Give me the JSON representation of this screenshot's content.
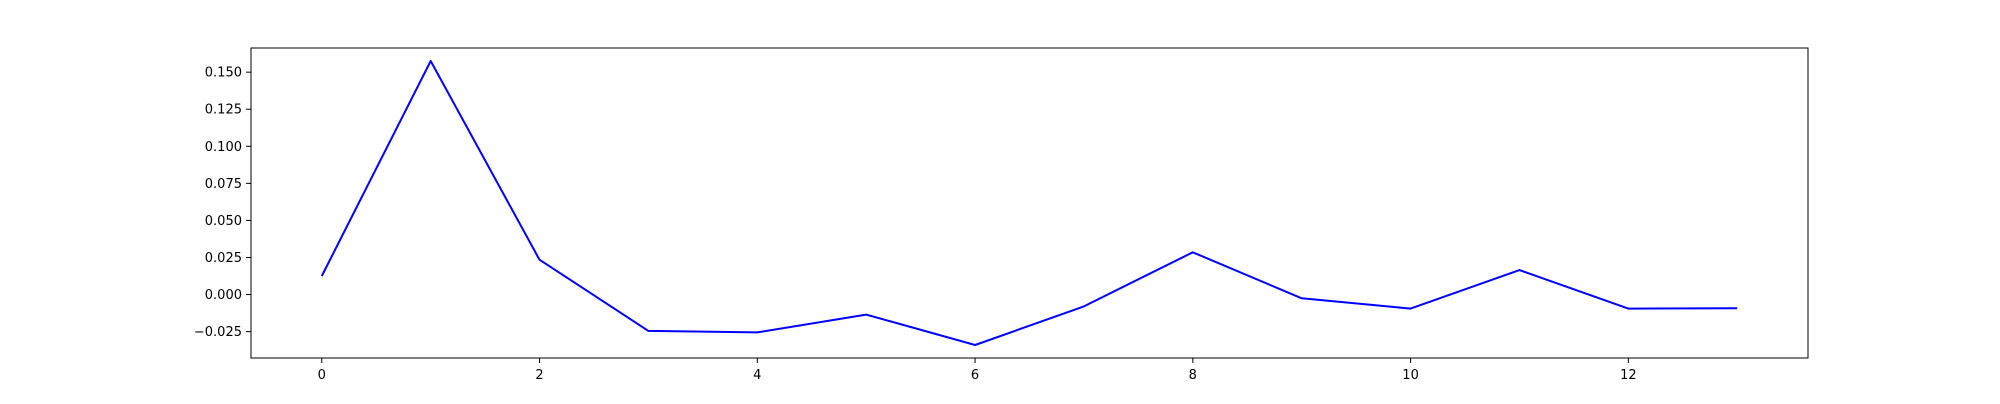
{
  "chart_data": {
    "type": "line",
    "title": "",
    "xlabel": "",
    "ylabel": "",
    "x": [
      0,
      1,
      2,
      3,
      4,
      5,
      6,
      7,
      8,
      9,
      10,
      11,
      12,
      13
    ],
    "series": [
      {
        "values": [
          0.0125,
          0.1575,
          0.0235,
          -0.0245,
          -0.0255,
          -0.0135,
          -0.034,
          -0.008,
          0.0285,
          -0.0025,
          -0.0095,
          0.0165,
          -0.0095,
          -0.0093
        ],
        "color": "#0000ff"
      }
    ],
    "xlim": [
      -0.65,
      13.65
    ],
    "ylim": [
      -0.0428,
      0.1663
    ],
    "xticks": [
      0,
      2,
      4,
      6,
      8,
      10,
      12
    ],
    "xtick_labels": [
      "0",
      "2",
      "4",
      "6",
      "8",
      "10",
      "12"
    ],
    "yticks": [
      -0.025,
      0.0,
      0.025,
      0.05,
      0.075,
      0.1,
      0.125,
      0.15
    ],
    "ytick_labels": [
      "−0.025",
      "0.000",
      "0.025",
      "0.050",
      "0.075",
      "0.100",
      "0.125",
      "0.150"
    ],
    "grid": false,
    "legend": "none"
  }
}
